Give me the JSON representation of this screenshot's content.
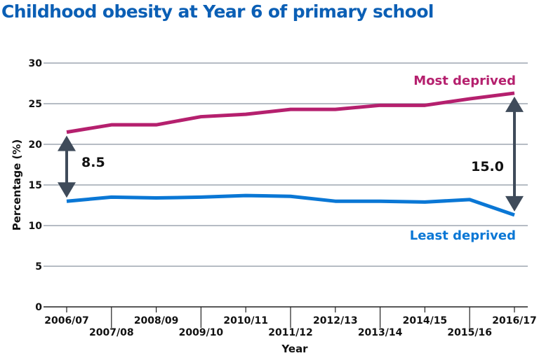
{
  "chart_data": {
    "type": "line",
    "title": "Childhood obesity at Year 6 of primary school",
    "xlabel": "Year",
    "ylabel": "Percentage (%)",
    "ylim": [
      0,
      30
    ],
    "yticks": [
      0,
      5,
      10,
      15,
      20,
      25,
      30
    ],
    "grid": true,
    "categories": [
      "2006/07",
      "2007/08",
      "2008/09",
      "2009/10",
      "2010/11",
      "2011/12",
      "2012/13",
      "2013/14",
      "2014/15",
      "2015/16",
      "2016/17"
    ],
    "series": [
      {
        "name": "Most deprived",
        "color": "#b5206e",
        "values": [
          21.5,
          22.4,
          22.4,
          23.4,
          23.7,
          24.3,
          24.3,
          24.8,
          24.8,
          25.6,
          26.3
        ]
      },
      {
        "name": "Least deprived",
        "color": "#0a77d5",
        "values": [
          13.0,
          13.5,
          13.4,
          13.5,
          13.7,
          13.6,
          13.0,
          13.0,
          12.9,
          13.2,
          11.3
        ]
      }
    ],
    "annotations": [
      {
        "text": "8.5",
        "category": "2006/07"
      },
      {
        "text": "15.0",
        "category": "2016/17"
      }
    ],
    "arrow_color": "#3f4b5a"
  }
}
